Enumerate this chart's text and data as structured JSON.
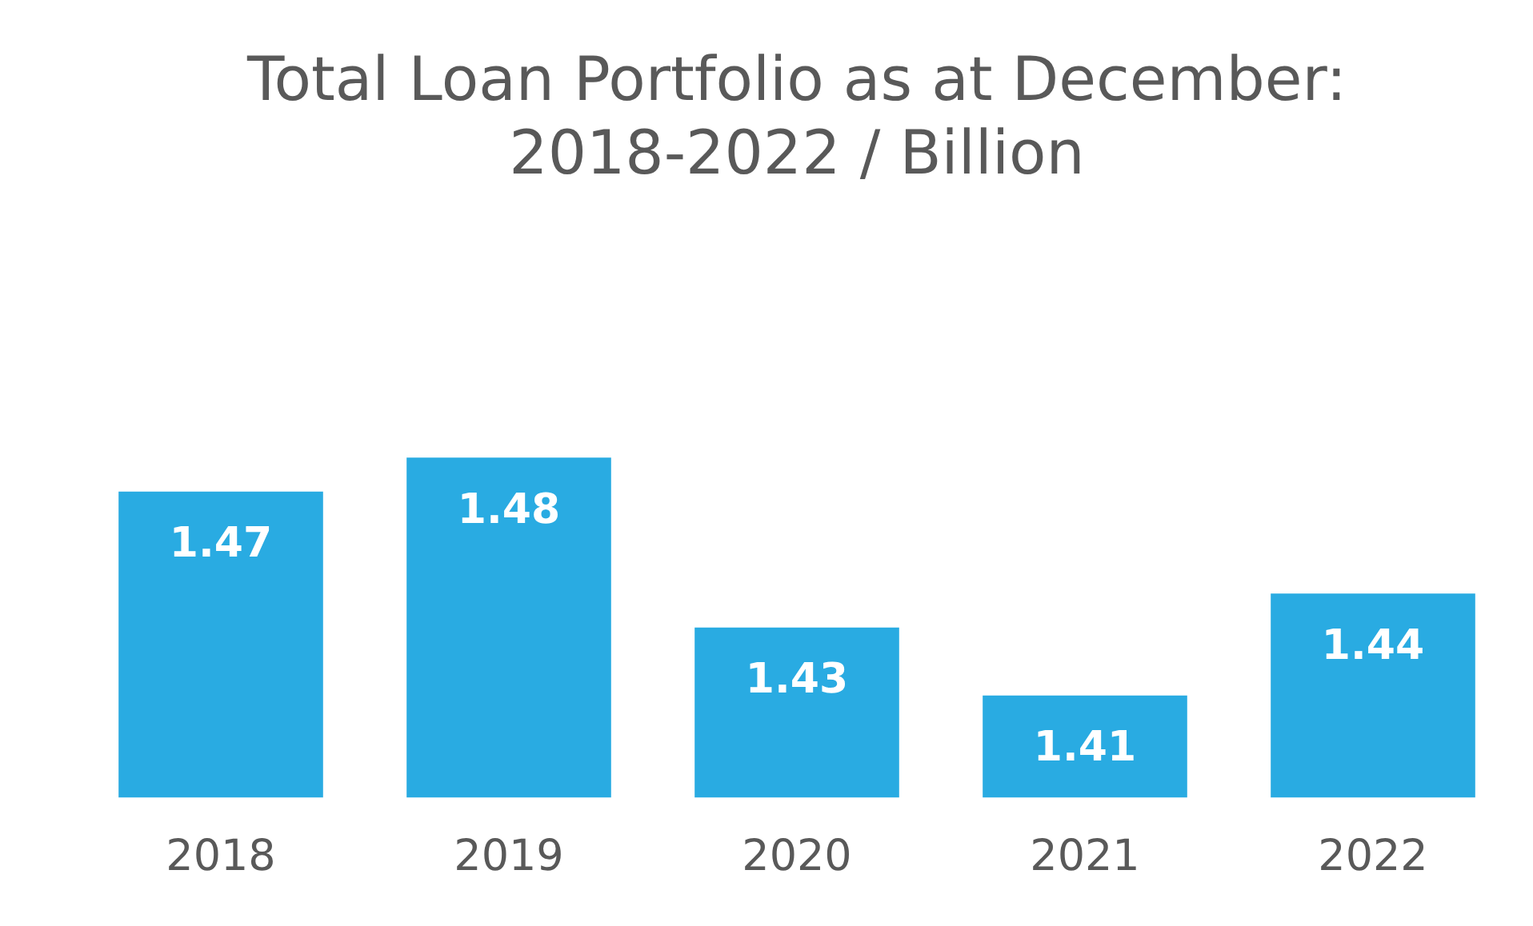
{
  "chart_data": {
    "type": "bar",
    "title": "Total Loan Portfolio as at December:\n2018-2022 / Billion",
    "categories": [
      "2018",
      "2019",
      "2020",
      "2021",
      "2022"
    ],
    "values": [
      1.47,
      1.48,
      1.43,
      1.41,
      1.44
    ],
    "color": "#29abe2",
    "tick_labels": "x",
    "grid": false,
    "legend": false,
    "data_labels": true
  }
}
